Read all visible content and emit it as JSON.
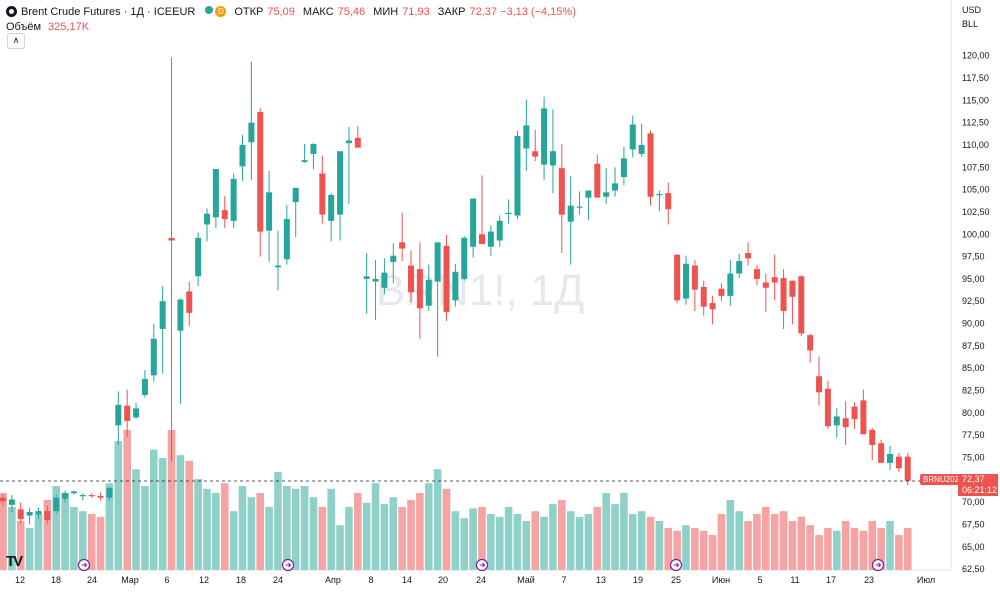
{
  "header": {
    "symbol_title": "Brent Crude Futures · 1Д · ICEEUR",
    "badge_d": "D",
    "open_label": "ОТКР",
    "open_value": "75,09",
    "high_label": "МАКС",
    "high_value": "75,46",
    "low_label": "МИН",
    "low_value": "71,93",
    "close_label": "ЗАКР",
    "close_value": "72,37 −3,13 (−4,15%)",
    "volume_label": "Объём",
    "volume_value": "325,17K"
  },
  "price_scale": {
    "currency": "USD",
    "unit": "BLL",
    "ticks": [
      "120,00",
      "117,50",
      "115,00",
      "112,50",
      "110,00",
      "107,50",
      "105,00",
      "102,50",
      "100,00",
      "97,50",
      "95,00",
      "92,50",
      "90,00",
      "87,50",
      "85,00",
      "82,50",
      "80,00",
      "77,50",
      "75,00",
      "72,50",
      "70,00",
      "67,50",
      "65,00",
      "62,50"
    ]
  },
  "last_price": {
    "contract_tag": "BRNU2026",
    "price": "72,37",
    "countdown": "06:21:12"
  },
  "watermark": "BRN1!, 1Д",
  "colors": {
    "up": "#26a69a",
    "down": "#ef5350",
    "vol_up": "#8fd1c9",
    "vol_down": "#f5a3a3"
  },
  "chart_data": {
    "type": "candlestick",
    "title": "Brent Crude Futures · 1Д · ICEEUR",
    "ylim": [
      62.5,
      121.5
    ],
    "x_ticks": [
      "12",
      "18",
      "24",
      "Мар",
      "6",
      "12",
      "18",
      "24",
      "Апр",
      "8",
      "14",
      "20",
      "24",
      "Май",
      "7",
      "13",
      "19",
      "25",
      "Июн",
      "5",
      "11",
      "17",
      "23",
      "Июл"
    ],
    "price_ticks_shown": [
      62.5,
      65,
      67.5,
      70,
      72.5,
      75,
      77.5,
      80,
      82.5,
      85,
      87.5,
      90,
      92.5,
      95,
      97.5,
      100,
      102.5,
      105,
      107.5,
      110,
      112.5,
      115,
      117.5,
      120
    ],
    "last": {
      "open": 75.09,
      "high": 75.46,
      "low": 71.93,
      "close": 72.37,
      "change": -3.13,
      "change_pct": -4.15
    },
    "volume_last": "325,17K",
    "candles_ohlc": [
      [
        70.5,
        70.9,
        69.6,
        70.1
      ],
      [
        69.7,
        70.8,
        68.9,
        70.3
      ],
      [
        69.2,
        70.0,
        67.6,
        68.1
      ],
      [
        68.5,
        69.4,
        67.5,
        68.9
      ],
      [
        68.6,
        69.4,
        68.1,
        69.0
      ],
      [
        69.0,
        69.6,
        67.6,
        68.0
      ],
      [
        69.0,
        70.9,
        68.7,
        70.5
      ],
      [
        70.4,
        71.3,
        70.0,
        71.0
      ],
      [
        71.0,
        71.3,
        70.8,
        71.2
      ],
      [
        70.7,
        71.0,
        70.2,
        70.8
      ],
      [
        70.8,
        71.0,
        70.5,
        70.7
      ],
      [
        70.7,
        71.1,
        70.2,
        70.5
      ],
      [
        70.5,
        71.7,
        70.2,
        71.6
      ],
      [
        78.6,
        82.4,
        76.4,
        80.9
      ],
      [
        80.8,
        82.6,
        77.3,
        79.1
      ],
      [
        79.5,
        81.1,
        79.3,
        80.5
      ],
      [
        82.0,
        84.8,
        81.7,
        83.8
      ],
      [
        84.2,
        90.0,
        83.5,
        88.3
      ],
      [
        89.4,
        94.2,
        84.4,
        92.5
      ],
      [
        99.6,
        119.8,
        74.6,
        99.3
      ],
      [
        89.2,
        92.8,
        81.0,
        92.7
      ],
      [
        93.6,
        94.7,
        89.7,
        91.2
      ],
      [
        95.3,
        100.2,
        94.2,
        99.6
      ],
      [
        101.1,
        102.9,
        99.2,
        102.3
      ],
      [
        101.9,
        107.3,
        100.7,
        107.3
      ],
      [
        102.7,
        104.3,
        100.7,
        101.7
      ],
      [
        101.5,
        106.8,
        100.7,
        106.2
      ],
      [
        107.6,
        111.1,
        106.0,
        110.0
      ],
      [
        110.3,
        119.3,
        106.1,
        112.5
      ],
      [
        113.7,
        114.1,
        97.5,
        100.3
      ],
      [
        100.4,
        107.1,
        96.9,
        104.7
      ],
      [
        96.3,
        100.4,
        93.7,
        96.5
      ],
      [
        97.2,
        103.3,
        96.6,
        101.7
      ],
      [
        103.6,
        105.1,
        99.7,
        105.2
      ],
      [
        108.1,
        110.1,
        108.0,
        108.3
      ],
      [
        109.0,
        110.2,
        107.3,
        110.1
      ],
      [
        106.8,
        108.8,
        101.2,
        102.2
      ],
      [
        101.5,
        104.6,
        99.2,
        104.4
      ],
      [
        102.2,
        108.9,
        99.3,
        109.3
      ],
      [
        110.2,
        112.0,
        103.4,
        110.5
      ],
      [
        110.8,
        112.1,
        109.7,
        109.7
      ],
      [
        95.0,
        97.9,
        91.1,
        95.3
      ],
      [
        94.7,
        97.1,
        90.4,
        95.0
      ],
      [
        94.0,
        97.3,
        93.3,
        95.7
      ],
      [
        96.9,
        99.0,
        94.5,
        97.6
      ],
      [
        99.1,
        102.4,
        97.0,
        98.4
      ],
      [
        96.5,
        98.2,
        92.4,
        93.5
      ],
      [
        96.1,
        99.1,
        88.3,
        91.7
      ],
      [
        92.0,
        96.6,
        91.4,
        94.9
      ],
      [
        94.7,
        99.1,
        86.3,
        99.1
      ],
      [
        98.7,
        99.9,
        90.3,
        91.3
      ],
      [
        92.6,
        96.7,
        91.9,
        95.8
      ],
      [
        95.0,
        99.8,
        94.8,
        99.6
      ],
      [
        98.6,
        103.8,
        97.4,
        104.0
      ],
      [
        100.0,
        106.6,
        99.5,
        98.9
      ],
      [
        98.6,
        101.0,
        97.6,
        100.3
      ],
      [
        99.3,
        102.1,
        98.6,
        101.5
      ],
      [
        102.3,
        103.9,
        101.2,
        102.4
      ],
      [
        102.1,
        111.6,
        101.7,
        111.0
      ],
      [
        109.6,
        115.1,
        107.1,
        112.2
      ],
      [
        109.3,
        111.7,
        108.2,
        108.7
      ],
      [
        107.8,
        115.4,
        106.1,
        114.1
      ],
      [
        107.7,
        114.0,
        104.6,
        109.3
      ],
      [
        107.4,
        110.1,
        97.9,
        102.2
      ],
      [
        101.4,
        106.5,
        96.6,
        103.2
      ],
      [
        103.0,
        104.8,
        102.2,
        103.1
      ],
      [
        104.1,
        104.9,
        101.6,
        104.9
      ],
      [
        107.9,
        108.9,
        105.2,
        104.1
      ],
      [
        104.2,
        107.4,
        103.4,
        104.7
      ],
      [
        104.9,
        107.5,
        104.2,
        105.7
      ],
      [
        106.4,
        109.8,
        105.5,
        108.5
      ],
      [
        109.5,
        113.3,
        108.6,
        112.3
      ],
      [
        109.0,
        112.4,
        108.7,
        110.0
      ],
      [
        111.3,
        111.6,
        103.2,
        104.2
      ],
      [
        104.4,
        104.9,
        102.6,
        104.5
      ],
      [
        104.6,
        105.8,
        101.1,
        102.8
      ],
      [
        97.7,
        97.8,
        92.3,
        92.6
      ],
      [
        92.8,
        97.6,
        92.1,
        96.7
      ],
      [
        96.5,
        97.1,
        91.4,
        93.8
      ],
      [
        94.1,
        94.8,
        90.9,
        91.9
      ],
      [
        92.3,
        93.1,
        89.9,
        91.6
      ],
      [
        93.9,
        94.5,
        92.5,
        93.1
      ],
      [
        93.1,
        97.1,
        92.0,
        95.6
      ],
      [
        95.6,
        97.8,
        95.1,
        97.0
      ],
      [
        97.9,
        99.1,
        96.5,
        97.3
      ],
      [
        96.1,
        96.6,
        94.3,
        95.0
      ],
      [
        94.6,
        95.6,
        91.3,
        94.0
      ],
      [
        95.2,
        97.7,
        92.6,
        94.6
      ],
      [
        95.1,
        96.1,
        89.4,
        91.4
      ],
      [
        94.8,
        94.8,
        89.9,
        93.0
      ],
      [
        95.3,
        95.4,
        88.6,
        88.9
      ],
      [
        88.7,
        88.9,
        85.6,
        87.0
      ],
      [
        84.1,
        86.3,
        80.8,
        82.3
      ],
      [
        82.7,
        83.6,
        78.2,
        78.5
      ],
      [
        78.6,
        80.5,
        77.2,
        79.6
      ],
      [
        79.4,
        81.3,
        76.4,
        78.4
      ],
      [
        80.7,
        81.2,
        78.2,
        79.3
      ],
      [
        81.4,
        82.6,
        78.1,
        77.6
      ],
      [
        78.1,
        78.3,
        74.7,
        76.4
      ],
      [
        76.6,
        77.0,
        75.1,
        74.4
      ],
      [
        74.4,
        76.3,
        73.6,
        75.4
      ],
      [
        75.1,
        75.5,
        73.4,
        73.8
      ],
      [
        75.1,
        75.5,
        71.9,
        72.4
      ]
    ],
    "volume_bars_relative": [
      0.55,
      0.45,
      0.35,
      0.3,
      0.4,
      0.5,
      0.6,
      0.55,
      0.45,
      0.42,
      0.4,
      0.38,
      0.62,
      0.92,
      1.0,
      0.72,
      0.6,
      0.86,
      0.8,
      1.0,
      0.82,
      0.78,
      0.65,
      0.58,
      0.55,
      0.62,
      0.42,
      0.6,
      0.52,
      0.55,
      0.45,
      0.7,
      0.6,
      0.58,
      0.6,
      0.52,
      0.45,
      0.58,
      0.32,
      0.45,
      0.55,
      0.48,
      0.62,
      0.47,
      0.52,
      0.45,
      0.5,
      0.55,
      0.62,
      0.72,
      0.58,
      0.42,
      0.37,
      0.44,
      0.45,
      0.4,
      0.38,
      0.45,
      0.4,
      0.35,
      0.42,
      0.38,
      0.47,
      0.5,
      0.42,
      0.38,
      0.4,
      0.45,
      0.55,
      0.47,
      0.55,
      0.4,
      0.42,
      0.38,
      0.35,
      0.3,
      0.28,
      0.32,
      0.3,
      0.28,
      0.25,
      0.4,
      0.5,
      0.42,
      0.35,
      0.4,
      0.45,
      0.4,
      0.42,
      0.35,
      0.38,
      0.32,
      0.25,
      0.3,
      0.28,
      0.35,
      0.3,
      0.28,
      0.35,
      0.3,
      0.35,
      0.25,
      0.3,
      0.25
    ]
  }
}
